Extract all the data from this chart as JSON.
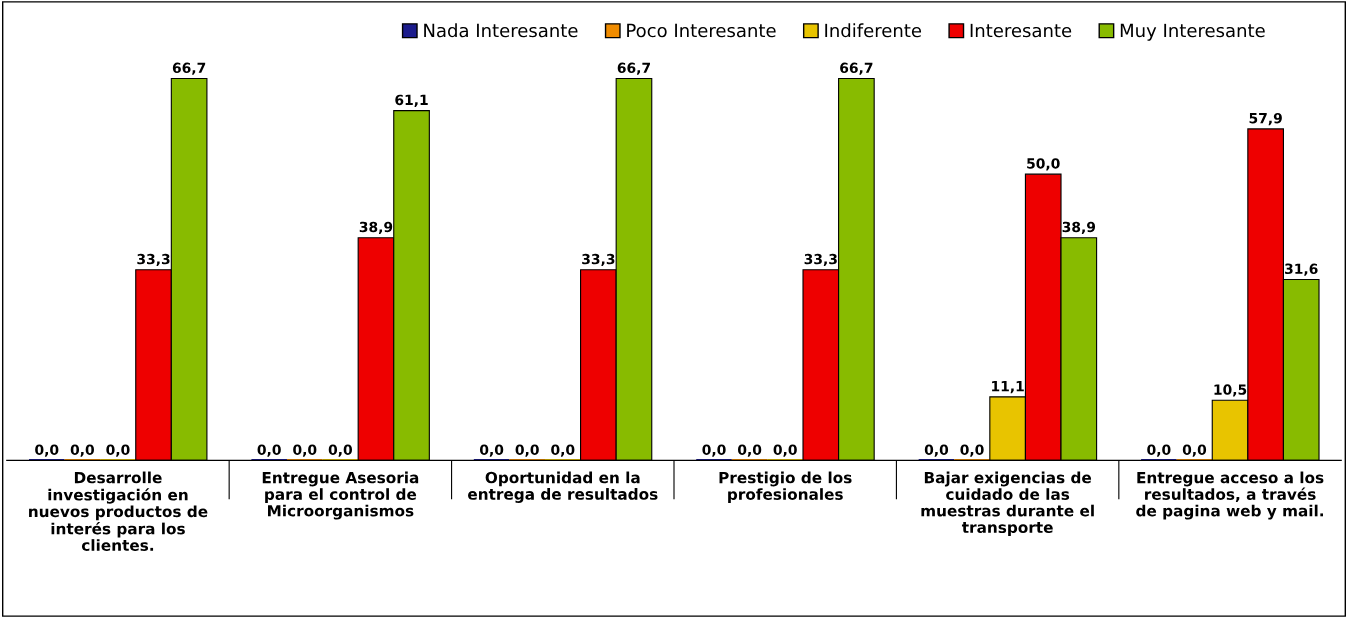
{
  "chart_data": {
    "type": "bar",
    "categories": [
      "Desarrolle\ninvestigación en\nnuevos productos de\ninterés para los\nclientes.",
      "Entregue Asesoria\npara el control de\nMicroorganismos",
      "Oportunidad en la\nentrega de resultados",
      "Prestigio de los\nprofesionales",
      "Bajar exigencias de\ncuidado de las\nmuestras durante el\ntransporte",
      "Entregue acceso a los\nresultados, a través\nde pagina web y mail."
    ],
    "series": [
      {
        "name": "Nada Interesante",
        "color": "#1c1c8c",
        "values": [
          0.0,
          0.0,
          0.0,
          0.0,
          0.0,
          0.0
        ],
        "value_labels": [
          "0,0",
          "0,0",
          "0,0",
          "0,0",
          "0,0",
          "0,0"
        ]
      },
      {
        "name": "Poco Interesante",
        "color": "#f08c00",
        "values": [
          0.0,
          0.0,
          0.0,
          0.0,
          0.0,
          0.0
        ],
        "value_labels": [
          "0,0",
          "0,0",
          "0,0",
          "0,0",
          "0,0",
          "0,0"
        ]
      },
      {
        "name": "Indiferente",
        "color": "#e8c400",
        "values": [
          0.0,
          0.0,
          0.0,
          0.0,
          11.1,
          10.5
        ],
        "value_labels": [
          "0,0",
          "0,0",
          "0,0",
          "0,0",
          "11,1",
          "10,5"
        ]
      },
      {
        "name": "Interesante",
        "color": "#ee0000",
        "values": [
          33.3,
          38.9,
          33.3,
          33.3,
          50.0,
          57.9
        ],
        "value_labels": [
          "33,3",
          "38,9",
          "33,3",
          "33,3",
          "50,0",
          "57,9"
        ]
      },
      {
        "name": "Muy Interesante",
        "color": "#88bb00",
        "values": [
          66.7,
          61.1,
          66.7,
          66.7,
          38.9,
          31.6
        ],
        "value_labels": [
          "66,7",
          "61,1",
          "66,7",
          "66,7",
          "38,9",
          "31,6"
        ]
      }
    ],
    "legend": "top",
    "tick_labels": "x"
  }
}
